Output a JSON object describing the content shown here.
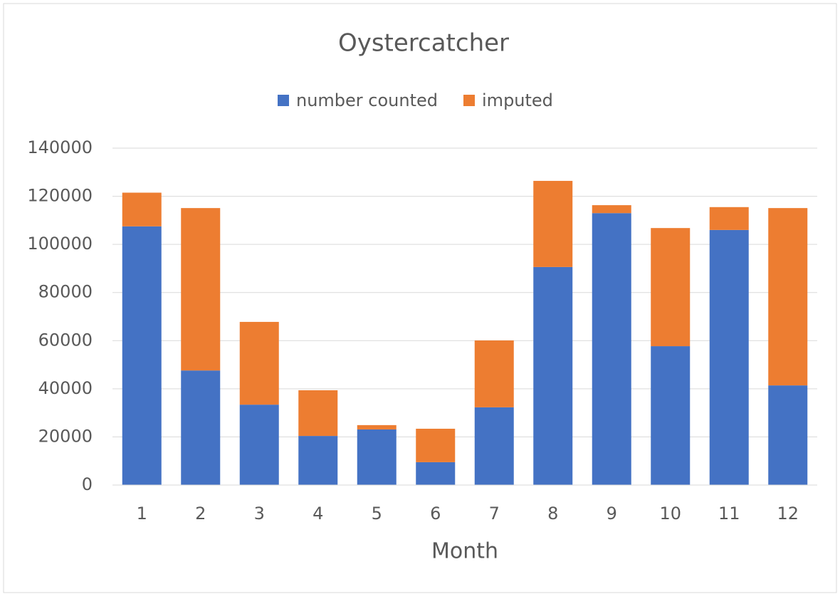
{
  "chart_data": {
    "type": "stacked_bar",
    "title": "Oystercatcher",
    "x_label": "Month",
    "categories": [
      "1",
      "2",
      "3",
      "4",
      "5",
      "6",
      "7",
      "8",
      "9",
      "10",
      "11",
      "12"
    ],
    "series": [
      {
        "name": "number counted",
        "color": "#4472c4",
        "values": [
          107500,
          47600,
          33400,
          20400,
          23100,
          9500,
          32300,
          90600,
          113000,
          57700,
          106000,
          41400
        ]
      },
      {
        "name": "imputed",
        "color": "#ed7d31",
        "values": [
          14000,
          67500,
          34400,
          19000,
          1800,
          13900,
          27800,
          35800,
          3300,
          49100,
          9500,
          73700
        ]
      }
    ],
    "ylim": [
      0,
      140000
    ],
    "yticks": [
      0,
      20000,
      40000,
      60000,
      80000,
      100000,
      120000,
      140000
    ],
    "grid": true,
    "legend": "top"
  }
}
